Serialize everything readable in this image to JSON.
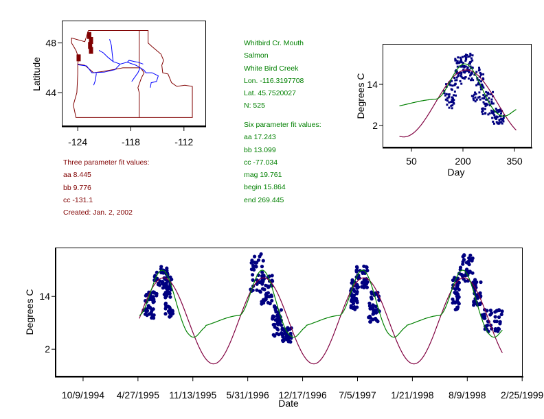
{
  "station_info": {
    "lines": [
      "Whitbird Cr.  Mouth",
      "Salmon",
      "White Bird Creek",
      "Lon. -116.3197708",
      "Lat. 45.7520027",
      "N: 525"
    ],
    "color": "#008000"
  },
  "six_param": {
    "title": "Six parameter fit values:",
    "lines": [
      "aa 17.243",
      "bb 13.099",
      "cc -77.034",
      "mag 19.761",
      "begin 15.864",
      "end 269.445"
    ],
    "color": "#008000"
  },
  "three_param": {
    "title": "Three parameter fit values:",
    "lines": [
      "aa 8.445",
      "bb 9.776",
      "cc -131.1",
      "Created:   Jan. 2, 2002"
    ],
    "color": "#800000"
  },
  "colors": {
    "three_param_curve": "#800040",
    "six_param_curve": "#008000",
    "observations": "#000080",
    "map_borders": "#800000",
    "map_rivers": "#0000ff"
  },
  "chart_data": [
    {
      "id": "location-map",
      "type": "line",
      "title": "",
      "xlabel": "",
      "ylabel": "Latitude",
      "xticks": [
        -124,
        -118,
        -112
      ],
      "xtick_labels": [
        "-124",
        "-118",
        "-112"
      ],
      "yticks": [
        48,
        44
      ],
      "ytick_labels": [
        "48",
        "44"
      ],
      "xlim": [
        -125.8,
        -109.5
      ],
      "ylim": [
        41.3,
        49.8
      ],
      "series": [
        {
          "name": "state borders",
          "color": "#800000"
        },
        {
          "name": "rivers",
          "color": "#0000ff"
        }
      ],
      "site": {
        "lon": -116.3197708,
        "lat": 45.7520027
      }
    },
    {
      "id": "seasonal-chart",
      "type": "scatter",
      "title": "",
      "xlabel": "Day",
      "ylabel": "Degrees C",
      "xticks": [
        50,
        200,
        350
      ],
      "xtick_labels": [
        "50",
        "200",
        "350"
      ],
      "yticks": [
        14,
        2
      ],
      "ytick_labels": [
        "14",
        "2"
      ],
      "xlim": [
        -34,
        400
      ],
      "ylim": [
        -4.4,
        25.8
      ],
      "grid": false,
      "series": [
        {
          "name": "three parameter fit",
          "type": "line",
          "color": "#800040",
          "x_range": [
            15,
            355
          ]
        },
        {
          "name": "six parameter fit",
          "type": "line",
          "color": "#008000",
          "x_range": [
            15,
            355
          ]
        },
        {
          "name": "observations",
          "type": "scatter",
          "color": "#000080",
          "clusters": [
            {
              "x_from": 145,
              "x_to": 180,
              "y_min": 7,
              "y_max": 15
            },
            {
              "x_from": 175,
              "x_to": 205,
              "y_min": 13,
              "y_max": 22
            },
            {
              "x_from": 200,
              "x_to": 230,
              "y_min": 15,
              "y_max": 23
            },
            {
              "x_from": 225,
              "x_to": 260,
              "y_min": 9,
              "y_max": 19
            },
            {
              "x_from": 255,
              "x_to": 290,
              "y_min": 5,
              "y_max": 12
            },
            {
              "x_from": 285,
              "x_to": 320,
              "y_min": 2.5,
              "y_max": 7
            }
          ]
        }
      ]
    },
    {
      "id": "timeseries-chart",
      "type": "scatter",
      "title": "",
      "xlabel": "Date",
      "ylabel": "Degrees C",
      "xtick_labels": [
        "10/9/1994",
        "4/27/1995",
        "11/13/1995",
        "5/31/1996",
        "12/17/1996",
        "7/5/1997",
        "1/21/1998",
        "8/9/1998",
        "2/25/1999"
      ],
      "xtick_days": [
        0,
        200,
        400,
        600,
        800,
        1000,
        1200,
        1400,
        1600
      ],
      "yticks": [
        14,
        2
      ],
      "ytick_labels": [
        "14",
        "2"
      ],
      "xlim_days": [
        -100,
        1602
      ],
      "ylim": [
        -4.2,
        25.1
      ],
      "grid": false,
      "series": [
        {
          "name": "three parameter fit",
          "type": "line",
          "color": "#800040",
          "day_range": [
            205,
            1530
          ]
        },
        {
          "name": "six parameter fit",
          "type": "line",
          "color": "#008000",
          "day_range": [
            205,
            1530
          ]
        },
        {
          "name": "observations",
          "type": "scatter",
          "color": "#000080",
          "clusters": [
            {
              "d_from": 220,
              "d_to": 260,
              "y_min": 9,
              "y_max": 15
            },
            {
              "d_from": 255,
              "d_to": 310,
              "y_min": 14,
              "y_max": 21
            },
            {
              "d_from": 300,
              "d_to": 330,
              "y_min": 9,
              "y_max": 19
            },
            {
              "d_from": 610,
              "d_to": 660,
              "y_min": 15,
              "y_max": 24
            },
            {
              "d_from": 650,
              "d_to": 690,
              "y_min": 12,
              "y_max": 19
            },
            {
              "d_from": 690,
              "d_to": 725,
              "y_min": 5,
              "y_max": 12
            },
            {
              "d_from": 725,
              "d_to": 760,
              "y_min": 3.5,
              "y_max": 7
            },
            {
              "d_from": 975,
              "d_to": 1000,
              "y_min": 11,
              "y_max": 18
            },
            {
              "d_from": 995,
              "d_to": 1040,
              "y_min": 16,
              "y_max": 21
            },
            {
              "d_from": 1040,
              "d_to": 1080,
              "y_min": 8,
              "y_max": 15
            },
            {
              "d_from": 1345,
              "d_to": 1370,
              "y_min": 11,
              "y_max": 19
            },
            {
              "d_from": 1370,
              "d_to": 1420,
              "y_min": 17,
              "y_max": 24
            },
            {
              "d_from": 1420,
              "d_to": 1450,
              "y_min": 12,
              "y_max": 18
            },
            {
              "d_from": 1450,
              "d_to": 1530,
              "y_min": 6,
              "y_max": 11
            }
          ]
        }
      ]
    }
  ]
}
